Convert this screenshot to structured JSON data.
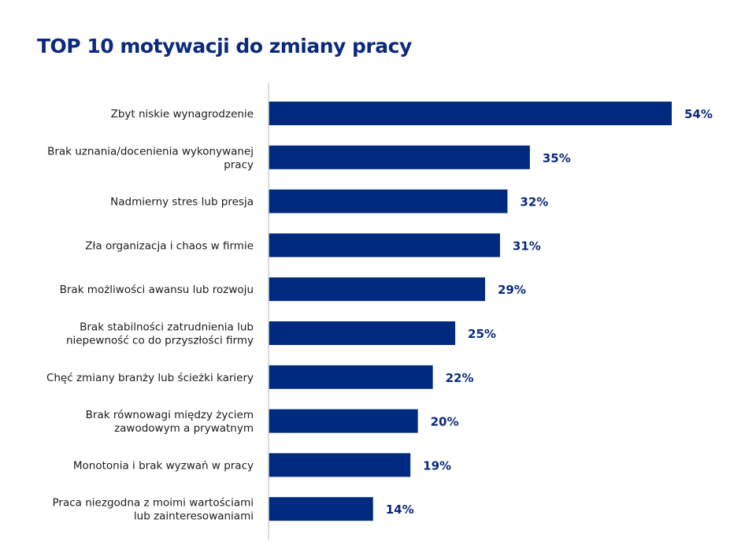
{
  "chart_data": {
    "type": "bar",
    "orientation": "horizontal",
    "title": "TOP 10 motywacji do zmiany pracy",
    "categories": [
      [
        "Zbyt niskie wynagrodzenie"
      ],
      [
        "Brak uznania/docenienia wykonywanej",
        "pracy"
      ],
      [
        "Nadmierny stres lub presja"
      ],
      [
        "Zła organizacja i chaos w firmie"
      ],
      [
        "Brak możliwości awansu lub rozwoju"
      ],
      [
        "Brak stabilności zatrudnienia lub",
        "niepewność co do przyszłości firmy"
      ],
      [
        "Chęć zmiany branży lub ścieżki kariery"
      ],
      [
        "Brak równowagi między życiem",
        "zawodowym a prywatnym"
      ],
      [
        "Monotonia i brak wyzwań w pracy"
      ],
      [
        "Praca niezgodna z moimi wartościami",
        "lub zainteresowaniami"
      ]
    ],
    "values": [
      54,
      35,
      32,
      31,
      29,
      25,
      22,
      20,
      19,
      14
    ],
    "value_labels": [
      "54%",
      "35%",
      "32%",
      "31%",
      "29%",
      "25%",
      "22%",
      "20%",
      "19%",
      "14%"
    ],
    "unit": "%",
    "xlim": [
      0,
      54
    ],
    "grid": false,
    "bar_color": "#002a7f",
    "axis_color": "#d0d0d0"
  }
}
